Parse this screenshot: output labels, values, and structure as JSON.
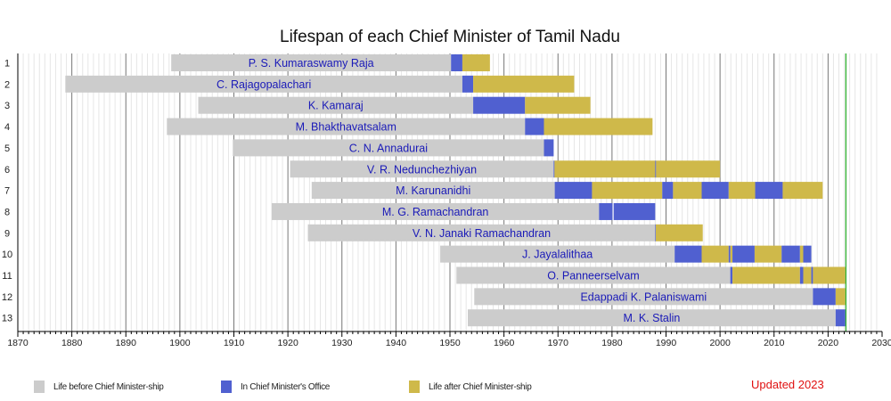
{
  "chart_data": {
    "type": "bar",
    "subtype": "timeline-gantt",
    "title": "Lifespan of each Chief Minister of Tamil Nadu",
    "xlabel": "",
    "ylabel": "",
    "xlim": [
      1870,
      2030
    ],
    "x_ticks": [
      1870,
      1880,
      1890,
      1900,
      1910,
      1920,
      1930,
      1940,
      1950,
      1960,
      1970,
      1980,
      1990,
      2000,
      2010,
      2020,
      2030
    ],
    "minor_tick_step": 1,
    "grid": true,
    "current_year_marker": 2023.3,
    "colors": {
      "before": "#cccccc",
      "office": "#5060d0",
      "after": "#cfb94a",
      "marker": "#22aa22",
      "name_text": "#1a1ab8",
      "updated_text": "#e01010"
    },
    "legend": [
      {
        "key": "before",
        "label": "Life before Chief Minister-ship"
      },
      {
        "key": "office",
        "label": "In Chief Minister's Office"
      },
      {
        "key": "after",
        "label": "Life after Chief Minister-ship"
      }
    ],
    "legend_position": "bottom",
    "note": "Updated 2023",
    "rows": [
      {
        "n": "1",
        "name": "P. S. Kumaraswamy Raja",
        "segments": [
          [
            "before",
            1898.4,
            1950.2
          ],
          [
            "office",
            1950.2,
            1952.3
          ],
          [
            "after",
            1952.3,
            1957.4
          ]
        ]
      },
      {
        "n": "2",
        "name": "C. Rajagopalachari",
        "segments": [
          [
            "before",
            1878.8,
            1952.3
          ],
          [
            "office",
            1952.3,
            1954.3
          ],
          [
            "after",
            1954.3,
            1973.0
          ]
        ]
      },
      {
        "n": "3",
        "name": "K. Kamaraj",
        "segments": [
          [
            "before",
            1903.4,
            1954.3
          ],
          [
            "office",
            1954.3,
            1963.9
          ],
          [
            "after",
            1963.9,
            1976.0
          ]
        ]
      },
      {
        "n": "4",
        "name": "M. Bhakthavatsalam",
        "segments": [
          [
            "before",
            1897.6,
            1963.9
          ],
          [
            "office",
            1963.9,
            1967.4
          ],
          [
            "after",
            1967.4,
            1987.5
          ]
        ]
      },
      {
        "n": "5",
        "name": "C. N. Annadurai",
        "segments": [
          [
            "before",
            1909.8,
            1967.4
          ],
          [
            "office",
            1967.4,
            1969.2
          ]
        ]
      },
      {
        "n": "6",
        "name": "V. R. Nedunchezhiyan",
        "segments": [
          [
            "before",
            1920.4,
            1969.2
          ],
          [
            "office",
            1969.2,
            1969.35
          ],
          [
            "after",
            1969.35,
            1988.0
          ],
          [
            "office",
            1988.0,
            1988.15
          ],
          [
            "after",
            1988.15,
            2000.0
          ]
        ]
      },
      {
        "n": "7",
        "name": "M. Karunanidhi",
        "segments": [
          [
            "before",
            1924.4,
            1969.4
          ],
          [
            "office",
            1969.4,
            1976.3
          ],
          [
            "after",
            1976.3,
            1989.3
          ],
          [
            "office",
            1989.3,
            1991.3
          ],
          [
            "after",
            1991.3,
            1996.6
          ],
          [
            "office",
            1996.6,
            2001.6
          ],
          [
            "after",
            2001.6,
            2006.5
          ],
          [
            "office",
            2006.5,
            2011.6
          ],
          [
            "after",
            2011.6,
            2019.0
          ]
        ]
      },
      {
        "n": "8",
        "name": "M. G. Ramachandran",
        "segments": [
          [
            "before",
            1917.0,
            1977.6
          ],
          [
            "office",
            1977.6,
            1980.1
          ],
          [
            "office",
            1980.3,
            1988.0
          ]
        ]
      },
      {
        "n": "9",
        "name": "V. N. Janaki Ramachandran",
        "segments": [
          [
            "before",
            1923.7,
            1988.0
          ],
          [
            "office",
            1988.0,
            1988.1
          ],
          [
            "after",
            1988.1,
            1996.8
          ]
        ]
      },
      {
        "n": "10",
        "name": "J. Jayalalithaa",
        "segments": [
          [
            "before",
            1948.2,
            1991.6
          ],
          [
            "office",
            1991.6,
            1996.6
          ],
          [
            "after",
            1996.6,
            2001.6
          ],
          [
            "office",
            2001.6,
            2001.9
          ],
          [
            "after",
            2001.9,
            2002.3
          ],
          [
            "office",
            2002.3,
            2006.4
          ],
          [
            "after",
            2006.4,
            2011.4
          ],
          [
            "office",
            2011.4,
            2014.8
          ],
          [
            "after",
            2014.8,
            2015.4
          ],
          [
            "office",
            2015.4,
            2016.9
          ]
        ]
      },
      {
        "n": "11",
        "name": "O. Panneerselvam",
        "segments": [
          [
            "before",
            1951.2,
            2001.9
          ],
          [
            "office",
            2001.9,
            2002.3
          ],
          [
            "after",
            2002.3,
            2014.8
          ],
          [
            "office",
            2014.8,
            2015.4
          ],
          [
            "after",
            2015.4,
            2016.9
          ],
          [
            "office",
            2016.9,
            2017.2
          ],
          [
            "after",
            2017.2,
            2023.2
          ]
        ]
      },
      {
        "n": "12",
        "name": "Edappadi K. Palaniswami",
        "segments": [
          [
            "before",
            1954.5,
            2017.2
          ],
          [
            "office",
            2017.2,
            2021.4
          ],
          [
            "after",
            2021.4,
            2023.2
          ]
        ]
      },
      {
        "n": "13",
        "name": "M. K. Stalin",
        "segments": [
          [
            "before",
            1953.3,
            2021.4
          ],
          [
            "office",
            2021.4,
            2023.2
          ]
        ]
      }
    ]
  }
}
